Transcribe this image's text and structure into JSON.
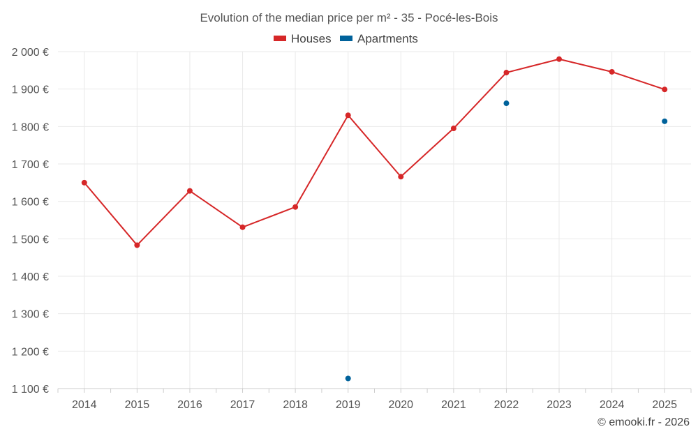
{
  "chart_data": {
    "type": "line",
    "title": "Evolution of the median price per m² - 35 - Pocé-les-Bois",
    "categories": [
      "2014",
      "2015",
      "2016",
      "2017",
      "2018",
      "2019",
      "2020",
      "2021",
      "2022",
      "2023",
      "2024",
      "2025"
    ],
    "series": [
      {
        "name": "Houses",
        "color": "#d62728",
        "values": [
          1650,
          1483,
          1628,
          1531,
          1585,
          1830,
          1666,
          1795,
          1944,
          1980,
          1946,
          1899
        ]
      },
      {
        "name": "Apartments",
        "color": "#00629b",
        "values": [
          null,
          null,
          null,
          null,
          null,
          1127,
          null,
          null,
          1862,
          null,
          null,
          1814
        ]
      }
    ],
    "ylim": [
      1100,
      2000
    ],
    "yticks": [
      1100,
      1200,
      1300,
      1400,
      1500,
      1600,
      1700,
      1800,
      1900,
      2000
    ],
    "ytick_labels": [
      "1 100 €",
      "1 200 €",
      "1 300 €",
      "1 400 €",
      "1 500 €",
      "1 600 €",
      "1 700 €",
      "1 800 €",
      "1 900 €",
      "2 000 €"
    ],
    "xlabel": "",
    "ylabel": "",
    "grid": true,
    "legend": "top-center"
  },
  "credit": "© emooki.fr - 2026"
}
